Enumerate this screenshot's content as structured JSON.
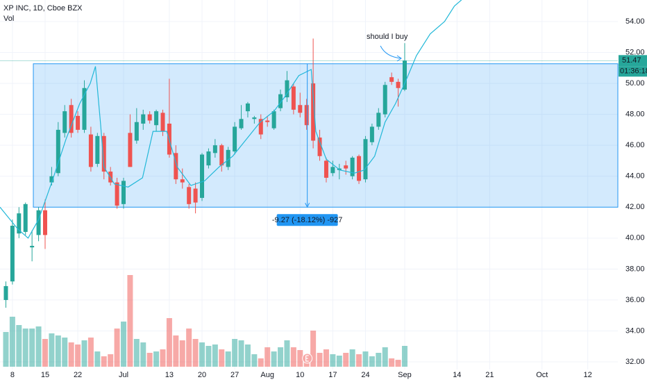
{
  "chart_data": {
    "type": "candlestick",
    "title": "XP INC, 1D, Cboe BZX",
    "volume_label": "Vol",
    "up_color": "#26a69a",
    "down_color": "#ef5350",
    "x": [
      0,
      1,
      2,
      3,
      4,
      5,
      6,
      7,
      8,
      9,
      10,
      11,
      12,
      13,
      14,
      15,
      16,
      17,
      18,
      19,
      20,
      21,
      22,
      23,
      24,
      25,
      26,
      27,
      28,
      29,
      30,
      31,
      32,
      33,
      34,
      35,
      36,
      37,
      38,
      39,
      40,
      41,
      42,
      43,
      44,
      45,
      46,
      47,
      48,
      49,
      50,
      51,
      52,
      53,
      54,
      55,
      56,
      57,
      58,
      59,
      60,
      61
    ],
    "open": [
      36.0,
      37.2,
      40.3,
      40.4,
      39.4,
      40.2,
      41.8,
      43.6,
      44.2,
      46.8,
      48.6,
      47.9,
      47.0,
      46.7,
      44.8,
      46.6,
      44.3,
      43.6,
      42.2,
      46.8,
      46.3,
      47.4,
      48.0,
      47.3,
      48.1,
      47.4,
      45.5,
      43.8,
      43.3,
      43.2,
      42.6,
      44.7,
      45.5,
      46.0,
      44.6,
      45.6,
      47.1,
      48.2,
      47.7,
      47.7,
      47.6,
      47.1,
      48.4,
      49.1,
      49.8,
      48.6,
      48.6,
      50.0,
      46.5,
      45.0,
      44.2,
      44.4,
      44.7,
      44.0,
      45.3,
      43.8,
      46.2,
      47.2,
      48.0,
      50.4,
      50.1,
      49.6
    ],
    "high": [
      37.2,
      41.2,
      42.0,
      42.3,
      40.5,
      42.0,
      42.5,
      44.6,
      47.5,
      48.6,
      49.0,
      48.2,
      50.2,
      47.2,
      46.8,
      46.8,
      44.6,
      43.9,
      43.9,
      48.0,
      48.4,
      48.3,
      48.2,
      48.3,
      48.3,
      50.3,
      46.0,
      44.5,
      43.5,
      43.6,
      45.5,
      45.8,
      46.4,
      46.1,
      45.9,
      47.5,
      48.6,
      48.8,
      47.9,
      48.0,
      47.9,
      48.3,
      49.6,
      50.8,
      50.0,
      49.4,
      49.0,
      52.9,
      47.0,
      45.2,
      45.0,
      44.8,
      45.0,
      45.3,
      45.4,
      46.6,
      47.4,
      48.4,
      50.1,
      50.7,
      50.3,
      52.6
    ],
    "low": [
      35.5,
      37.0,
      40.0,
      40.2,
      38.5,
      39.8,
      39.3,
      43.4,
      44.0,
      46.5,
      46.5,
      46.8,
      46.8,
      44.3,
      44.6,
      43.8,
      43.4,
      41.9,
      41.9,
      44.6,
      46.1,
      47.0,
      47.4,
      46.9,
      46.6,
      45.2,
      43.5,
      43.2,
      41.9,
      41.6,
      42.4,
      44.5,
      45.2,
      44.3,
      44.4,
      45.4,
      47.0,
      47.8,
      47.4,
      46.4,
      47.2,
      47.0,
      48.2,
      48.8,
      48.0,
      47.8,
      47.0,
      45.8,
      45.0,
      43.6,
      44.0,
      43.8,
      44.1,
      43.8,
      43.5,
      43.6,
      46.0,
      47.0,
      47.8,
      49.9,
      48.5,
      49.5
    ],
    "close": [
      36.9,
      40.8,
      41.6,
      42.2,
      39.5,
      41.8,
      40.2,
      44.0,
      47.0,
      48.2,
      46.8,
      47.0,
      49.7,
      44.6,
      46.6,
      44.3,
      43.6,
      42.1,
      43.7,
      44.6,
      47.5,
      48.0,
      47.6,
      48.2,
      46.9,
      45.4,
      43.8,
      43.6,
      42.2,
      42.3,
      45.4,
      45.6,
      46.0,
      44.7,
      45.7,
      47.2,
      47.7,
      48.7,
      47.8,
      46.7,
      47.5,
      48.2,
      49.3,
      50.2,
      48.3,
      48.1,
      47.3,
      46.3,
      45.3,
      43.9,
      44.6,
      44.5,
      44.5,
      45.2,
      43.7,
      46.4,
      47.2,
      48.1,
      49.9,
      50.1,
      49.7,
      51.47
    ],
    "volume": [
      50,
      72,
      60,
      55,
      55,
      58,
      40,
      48,
      45,
      42,
      35,
      32,
      38,
      42,
      22,
      15,
      18,
      55,
      65,
      132,
      40,
      35,
      20,
      22,
      25,
      70,
      45,
      38,
      55,
      40,
      35,
      30,
      32,
      25,
      22,
      40,
      38,
      32,
      18,
      12,
      28,
      22,
      28,
      38,
      28,
      24,
      15,
      52,
      20,
      25,
      18,
      16,
      20,
      25,
      18,
      22,
      15,
      20,
      28,
      12,
      10,
      30
    ],
    "vlim": [
      0,
      140
    ],
    "xlim": [
      -0.9,
      93.6
    ],
    "xticks": [
      {
        "value": 1,
        "label": "8"
      },
      {
        "value": 6,
        "label": "15"
      },
      {
        "value": 11,
        "label": "22"
      },
      {
        "value": 18,
        "label": "Jul"
      },
      {
        "value": 25,
        "label": "13"
      },
      {
        "value": 30,
        "label": "20"
      },
      {
        "value": 35,
        "label": "27"
      },
      {
        "value": 40,
        "label": "Aug"
      },
      {
        "value": 45,
        "label": "10"
      },
      {
        "value": 50,
        "label": "17"
      },
      {
        "value": 55,
        "label": "24"
      },
      {
        "value": 61,
        "label": "Sep"
      },
      {
        "value": 69,
        "label": "14"
      },
      {
        "value": 74,
        "label": "21"
      },
      {
        "value": 82,
        "label": "Oct"
      },
      {
        "value": 89,
        "label": "12"
      }
    ],
    "ylim": [
      30.7,
      55.39
    ],
    "yticks": [
      {
        "value": 32,
        "label": "32.00"
      },
      {
        "value": 34,
        "label": "34.00"
      },
      {
        "value": 36,
        "label": "36.00"
      },
      {
        "value": 38,
        "label": "38.00"
      },
      {
        "value": 40,
        "label": "40.00"
      },
      {
        "value": 42,
        "label": "42.00"
      },
      {
        "value": 44,
        "label": "44.00"
      },
      {
        "value": 46,
        "label": "46.00"
      },
      {
        "value": 48,
        "label": "48.00"
      },
      {
        "value": 50,
        "label": "50.00"
      },
      {
        "value": 52,
        "label": "52.00"
      },
      {
        "value": 54,
        "label": "54.00"
      }
    ],
    "grid": true,
    "last_price": {
      "value": 51.47,
      "label": "51.47"
    },
    "countdown": "01:36:18",
    "range_box": {
      "x0": 4.2,
      "x1": 93.6,
      "top": 51.27,
      "bottom": 42.0,
      "color": "#2196f3"
    },
    "measure": {
      "x": 46.1,
      "label": "-9.27 (-18.12%) -927"
    },
    "note": "should I buy",
    "trend_curve": {
      "color": "#22b8d8",
      "x": [
        -0.9,
        1.8,
        3.4,
        5.0,
        7.1,
        9.2,
        11.3,
        12.9,
        13.7,
        14.5,
        15.0,
        16.6,
        18.7,
        20.9,
        22.5,
        24.6,
        26.2,
        28.3,
        30.4,
        32.6,
        34.7,
        36.8,
        38.9,
        41.0,
        42.6,
        44.8,
        46.7,
        47.4,
        49.0,
        51.1,
        53.3,
        54.8,
        56.4,
        58.0,
        59.6,
        61.2,
        62.8,
        64.9,
        67.1,
        68.6,
        69.7
      ],
      "y": [
        42.0,
        40.6,
        40.0,
        41.2,
        43.7,
        46.4,
        48.7,
        50.0,
        51.1,
        47.3,
        44.6,
        43.5,
        43.3,
        43.9,
        46.9,
        46.9,
        44.6,
        43.4,
        43.7,
        44.6,
        45.3,
        46.4,
        47.5,
        48.2,
        49.1,
        50.5,
        50.9,
        46.9,
        45.1,
        44.4,
        44.2,
        44.4,
        45.3,
        47.5,
        48.7,
        50.2,
        51.8,
        53.2,
        54.0,
        55.0,
        55.4
      ]
    }
  }
}
